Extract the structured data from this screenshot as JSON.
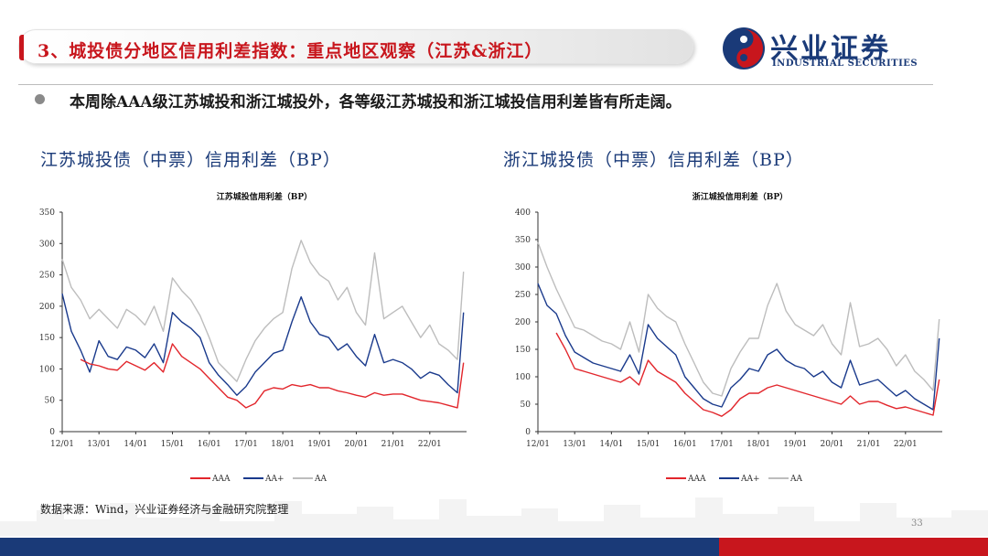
{
  "header": {
    "title": "3、城投债分地区信用利差指数：重点地区观察（江苏&浙江）",
    "logo_cn": "兴业证券",
    "logo_en": "INDUSTRIAL SECURITIES"
  },
  "bullet": "本周除AAA级江苏城投和浙江城投外，各等级江苏城投和浙江城投信用利差皆有所走阔。",
  "panels": [
    {
      "title": "江苏城投债（中票）信用利差（BP）"
    },
    {
      "title": "浙江城投债（中票）信用利差（BP）"
    }
  ],
  "footer": {
    "source": "数据来源：Wind，兴业证券经济与金融研究院整理",
    "page": "33"
  },
  "colors": {
    "AAA": "#e2262c",
    "AA+": "#1a3a8c",
    "AA": "#bdbdbd",
    "brand_blue": "#1a3a78",
    "brand_red": "#c8161d"
  },
  "chart_data": [
    {
      "type": "line",
      "title": "江苏城投信用利差（BP）",
      "x_ticks": [
        "12/01",
        "13/01",
        "14/01",
        "15/01",
        "16/01",
        "17/01",
        "18/01",
        "19/01",
        "20/01",
        "21/01",
        "22/01"
      ],
      "ylim": [
        0,
        350
      ],
      "y_ticks": [
        "0",
        "50",
        "100",
        "150",
        "200",
        "250",
        "300",
        "350"
      ],
      "legend": "bottom",
      "legend_labels": [
        "AAA",
        "AA+",
        "AA"
      ],
      "x": [
        "2012-01",
        "2012-04",
        "2012-07",
        "2012-10",
        "2013-01",
        "2013-04",
        "2013-07",
        "2013-10",
        "2014-01",
        "2014-04",
        "2014-07",
        "2014-10",
        "2015-01",
        "2015-04",
        "2015-07",
        "2015-10",
        "2016-01",
        "2016-04",
        "2016-07",
        "2016-10",
        "2017-01",
        "2017-04",
        "2017-07",
        "2017-10",
        "2018-01",
        "2018-04",
        "2018-07",
        "2018-10",
        "2019-01",
        "2019-04",
        "2019-07",
        "2019-10",
        "2020-01",
        "2020-04",
        "2020-07",
        "2020-10",
        "2021-01",
        "2021-04",
        "2021-07",
        "2021-10",
        "2022-01",
        "2022-04",
        "2022-07",
        "2022-10",
        "2022-12"
      ],
      "series": [
        {
          "name": "AAA",
          "values": [
            null,
            null,
            115,
            108,
            105,
            100,
            98,
            112,
            105,
            98,
            110,
            95,
            140,
            120,
            110,
            100,
            85,
            70,
            55,
            50,
            38,
            45,
            65,
            70,
            68,
            75,
            72,
            75,
            70,
            70,
            65,
            62,
            58,
            55,
            62,
            58,
            60,
            60,
            55,
            50,
            48,
            46,
            42,
            38,
            110
          ]
        },
        {
          "name": "AA+",
          "values": [
            220,
            160,
            130,
            95,
            145,
            120,
            115,
            135,
            130,
            118,
            140,
            110,
            190,
            175,
            165,
            150,
            110,
            90,
            75,
            58,
            72,
            95,
            110,
            125,
            130,
            175,
            215,
            175,
            155,
            150,
            130,
            140,
            120,
            105,
            155,
            110,
            115,
            110,
            100,
            85,
            95,
            90,
            75,
            62,
            190
          ]
        },
        {
          "name": "AA",
          "values": [
            275,
            230,
            210,
            180,
            195,
            180,
            165,
            195,
            185,
            170,
            200,
            160,
            245,
            225,
            210,
            185,
            150,
            110,
            95,
            80,
            115,
            145,
            165,
            180,
            190,
            260,
            305,
            270,
            250,
            240,
            210,
            230,
            190,
            170,
            285,
            180,
            190,
            200,
            175,
            150,
            170,
            140,
            130,
            115,
            255
          ]
        }
      ]
    },
    {
      "type": "line",
      "title": "浙江城投信用利差（BP）",
      "x_ticks": [
        "12/01",
        "13/01",
        "14/01",
        "15/01",
        "16/01",
        "17/01",
        "18/01",
        "19/01",
        "20/01",
        "21/01",
        "22/01"
      ],
      "ylim": [
        0,
        400
      ],
      "y_ticks": [
        "0",
        "50",
        "100",
        "150",
        "200",
        "250",
        "300",
        "350",
        "400"
      ],
      "legend": "bottom",
      "legend_labels": [
        "AAA",
        "AA+",
        "AA"
      ],
      "x": [
        "2012-01",
        "2012-04",
        "2012-07",
        "2012-10",
        "2013-01",
        "2013-04",
        "2013-07",
        "2013-10",
        "2014-01",
        "2014-04",
        "2014-07",
        "2014-10",
        "2015-01",
        "2015-04",
        "2015-07",
        "2015-10",
        "2016-01",
        "2016-04",
        "2016-07",
        "2016-10",
        "2017-01",
        "2017-04",
        "2017-07",
        "2017-10",
        "2018-01",
        "2018-04",
        "2018-07",
        "2018-10",
        "2019-01",
        "2019-04",
        "2019-07",
        "2019-10",
        "2020-01",
        "2020-04",
        "2020-07",
        "2020-10",
        "2021-01",
        "2021-04",
        "2021-07",
        "2021-10",
        "2022-01",
        "2022-04",
        "2022-07",
        "2022-10",
        "2022-12"
      ],
      "series": [
        {
          "name": "AAA",
          "values": [
            null,
            null,
            180,
            150,
            115,
            110,
            105,
            100,
            95,
            90,
            100,
            85,
            130,
            110,
            100,
            90,
            70,
            55,
            40,
            35,
            28,
            40,
            60,
            70,
            70,
            80,
            85,
            80,
            75,
            70,
            65,
            60,
            55,
            50,
            65,
            50,
            55,
            55,
            48,
            42,
            45,
            40,
            35,
            30,
            95
          ]
        },
        {
          "name": "AA+",
          "values": [
            270,
            230,
            215,
            175,
            145,
            135,
            125,
            120,
            115,
            110,
            140,
            105,
            195,
            170,
            155,
            140,
            100,
            80,
            60,
            50,
            45,
            80,
            95,
            115,
            110,
            140,
            150,
            130,
            120,
            115,
            100,
            110,
            90,
            80,
            130,
            85,
            90,
            95,
            80,
            65,
            75,
            60,
            50,
            40,
            170
          ]
        },
        {
          "name": "AA",
          "values": [
            345,
            300,
            260,
            225,
            190,
            185,
            175,
            165,
            160,
            150,
            200,
            145,
            250,
            225,
            210,
            200,
            160,
            125,
            90,
            70,
            65,
            115,
            145,
            170,
            170,
            230,
            270,
            220,
            195,
            185,
            175,
            195,
            160,
            140,
            235,
            155,
            160,
            170,
            150,
            120,
            140,
            110,
            95,
            75,
            205
          ]
        }
      ]
    }
  ]
}
